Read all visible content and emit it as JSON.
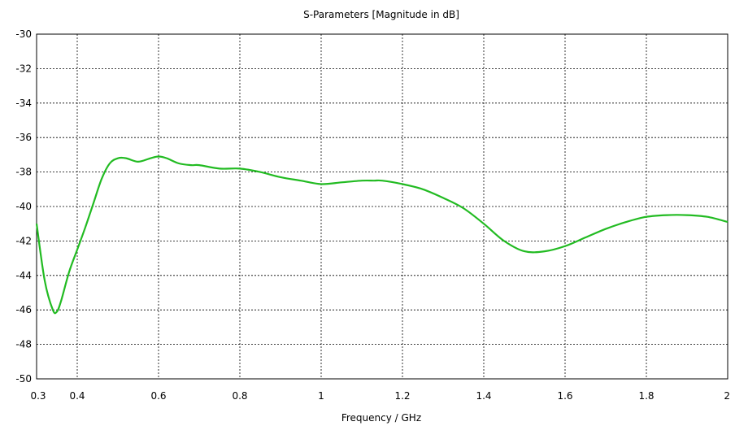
{
  "chart_data": {
    "type": "line",
    "title": "S-Parameters [Magnitude in dB]",
    "xlabel": "Frequency / GHz",
    "ylabel": "",
    "xlim": [
      0.3,
      2
    ],
    "ylim": [
      -50,
      -30
    ],
    "grid": true,
    "x_ticks": [
      0.4,
      0.6,
      0.8,
      1,
      1.2,
      1.4,
      1.6,
      1.8
    ],
    "x_tick_labels": [
      "0.3",
      "0.4",
      "0.6",
      "0.8",
      "1",
      "1.2",
      "1.4",
      "1.6",
      "1.8",
      "2"
    ],
    "x_tick_label_values": [
      0.3,
      0.4,
      0.6,
      0.8,
      1,
      1.2,
      1.4,
      1.6,
      1.8,
      2
    ],
    "y_ticks": [
      -32,
      -34,
      -36,
      -38,
      -40,
      -42,
      -44,
      -46,
      -48
    ],
    "y_tick_labels": [
      "-30",
      "-32",
      "-34",
      "-36",
      "-38",
      "-40",
      "-42",
      "-44",
      "-46",
      "-48",
      "-50"
    ],
    "y_tick_label_values": [
      -30,
      -32,
      -34,
      -36,
      -38,
      -40,
      -42,
      -44,
      -46,
      -48,
      -50
    ],
    "series": [
      {
        "color": "#22bb22",
        "x": [
          0.3,
          0.32,
          0.34,
          0.35,
          0.36,
          0.38,
          0.4,
          0.42,
          0.44,
          0.46,
          0.48,
          0.5,
          0.52,
          0.55,
          0.58,
          0.6,
          0.62,
          0.65,
          0.68,
          0.7,
          0.75,
          0.8,
          0.85,
          0.9,
          0.95,
          1.0,
          1.05,
          1.1,
          1.13,
          1.15,
          1.2,
          1.25,
          1.3,
          1.35,
          1.4,
          1.45,
          1.5,
          1.55,
          1.6,
          1.65,
          1.7,
          1.75,
          1.8,
          1.85,
          1.9,
          1.95,
          2.0
        ],
        "y": [
          -41.0,
          -44.3,
          -46.0,
          -46.1,
          -45.5,
          -43.8,
          -42.5,
          -41.2,
          -39.8,
          -38.4,
          -37.5,
          -37.2,
          -37.2,
          -37.4,
          -37.2,
          -37.1,
          -37.2,
          -37.5,
          -37.6,
          -37.6,
          -37.8,
          -37.8,
          -38.0,
          -38.3,
          -38.5,
          -38.7,
          -38.6,
          -38.5,
          -38.5,
          -38.5,
          -38.7,
          -39.0,
          -39.5,
          -40.1,
          -41.0,
          -42.0,
          -42.6,
          -42.6,
          -42.3,
          -41.8,
          -41.3,
          -40.9,
          -40.6,
          -40.5,
          -40.5,
          -40.6,
          -40.9
        ]
      }
    ]
  }
}
